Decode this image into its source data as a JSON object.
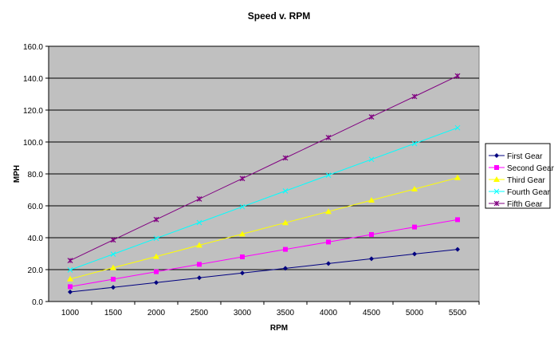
{
  "chart_data": {
    "type": "line",
    "title": "Speed v. RPM",
    "xlabel": "RPM",
    "ylabel": "MPH",
    "ylim": [
      0,
      160
    ],
    "yticks": [
      "0.0",
      "20.0",
      "40.0",
      "60.0",
      "80.0",
      "100.0",
      "120.0",
      "140.0",
      "160.0"
    ],
    "categories": [
      "1000",
      "1500",
      "2000",
      "2500",
      "3000",
      "3500",
      "4000",
      "4500",
      "5000",
      "5500"
    ],
    "grid": true,
    "legend_position": "right",
    "plot_background": "#C0C0C0",
    "series": [
      {
        "name": "First Gear",
        "color": "#000080",
        "marker": "diamond",
        "values": [
          6.0,
          8.9,
          11.9,
          14.9,
          17.9,
          20.8,
          23.8,
          26.8,
          29.8,
          32.7
        ]
      },
      {
        "name": "Second Gear",
        "color": "#FF00FF",
        "marker": "square",
        "values": [
          9.3,
          14.0,
          18.7,
          23.3,
          28.0,
          32.7,
          37.3,
          42.0,
          46.7,
          51.3
        ]
      },
      {
        "name": "Third Gear",
        "color": "#FFFF00",
        "marker": "triangle",
        "values": [
          14.1,
          21.2,
          28.2,
          35.3,
          42.3,
          49.4,
          56.4,
          63.5,
          70.5,
          77.6
        ]
      },
      {
        "name": "Fourth Gear",
        "color": "#00FFFF",
        "marker": "x",
        "values": [
          19.8,
          29.7,
          39.6,
          49.5,
          59.4,
          69.3,
          79.2,
          89.1,
          99.0,
          108.9
        ]
      },
      {
        "name": "Fifth Gear",
        "color": "#800080",
        "marker": "star",
        "values": [
          25.7,
          38.6,
          51.4,
          64.3,
          77.1,
          90.0,
          102.8,
          115.7,
          128.5,
          141.4
        ]
      }
    ]
  }
}
